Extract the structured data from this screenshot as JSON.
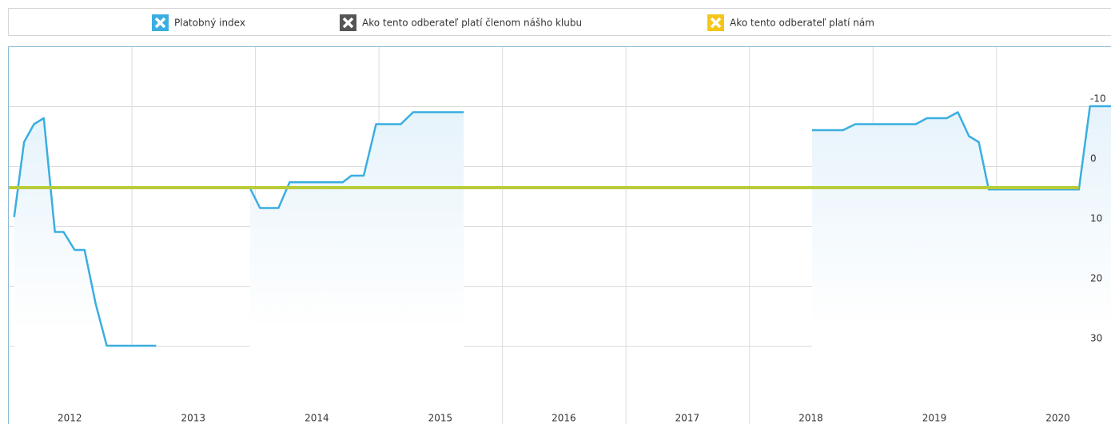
{
  "chart_data": {
    "type": "line",
    "series": [
      {
        "name": "Platobný index",
        "color": "#3aaee0",
        "fill": true,
        "x": [
          2012.05,
          2012.13,
          2012.21,
          2012.29,
          2012.38,
          2012.45,
          2012.54,
          2012.62,
          2012.71,
          2012.8,
          2013.2,
          null,
          2013.96,
          2014.04,
          2014.19,
          2014.28,
          2014.71,
          2014.78,
          2014.88,
          2014.98,
          2015.18,
          2015.28,
          2015.69,
          null,
          2018.51,
          2018.76,
          2018.86,
          2019.35,
          2019.44,
          2019.6,
          2019.69,
          2019.78,
          2019.86,
          2019.94,
          2020.67,
          2020.76,
          2020.93
        ],
        "values": [
          8.5,
          -4,
          -7,
          -8,
          11,
          11,
          14,
          14,
          23,
          30,
          30,
          null,
          3.7,
          7,
          7,
          2.7,
          2.7,
          1.6,
          1.6,
          -7,
          -7,
          -9,
          -9,
          null,
          -6,
          -6,
          -7,
          -7,
          -8,
          -8,
          -9,
          -5,
          -4,
          3.9,
          3.9,
          -10,
          -10
        ]
      },
      {
        "name": "Ako tento odberateľ platí členom nášho klubu",
        "color": "#555555",
        "x": [],
        "values": []
      },
      {
        "name": "Ako tento odberateľ platí nám",
        "color": "#b8cc3a",
        "icon_color": "#f5c518",
        "x": [
          2012,
          2020.67
        ],
        "values": [
          3.6,
          3.6
        ]
      }
    ],
    "xlim": [
      2012,
      2020.93
    ],
    "xticks": [
      2012,
      2013,
      2014,
      2015,
      2016,
      2017,
      2018,
      2019,
      2020
    ],
    "ylim": [
      -20,
      40
    ],
    "y_inverted": true,
    "yticks": [
      -10,
      0,
      10,
      20,
      30
    ],
    "grid": true,
    "legend": "top"
  }
}
